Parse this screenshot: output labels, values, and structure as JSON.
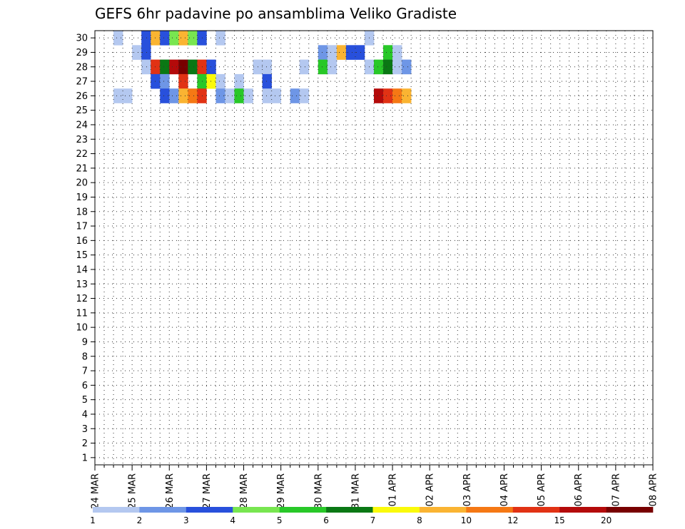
{
  "chart_data": {
    "type": "heatmap",
    "title": "GEFS 6hr padavine po ansamblima Veliko Gradiste",
    "xlabel": "",
    "ylabel": "",
    "x_tick_labels": [
      "24 MAR",
      "25 MAR",
      "26 MAR",
      "27 MAR",
      "28 MAR",
      "29 MAR",
      "30 MAR",
      "31 MAR",
      "01 APR",
      "02 APR",
      "03 APR",
      "04 APR",
      "05 APR",
      "06 APR",
      "07 APR",
      "08 APR"
    ],
    "y_tick_labels": [
      "1",
      "2",
      "3",
      "4",
      "5",
      "6",
      "7",
      "8",
      "9",
      "10",
      "11",
      "12",
      "13",
      "14",
      "15",
      "16",
      "17",
      "18",
      "19",
      "20",
      "21",
      "22",
      "23",
      "24",
      "25",
      "26",
      "27",
      "28",
      "29",
      "30"
    ],
    "x_range": [
      "24 MAR 00Z",
      "08 APR 00Z"
    ],
    "time_step_hours": 6,
    "y_range": [
      1,
      30
    ],
    "grid": "dotted",
    "colorbar": {
      "position": "bottom",
      "thresholds": [
        "1",
        "2",
        "3",
        "4",
        "5",
        "6",
        "7",
        "8",
        "10",
        "12",
        "15",
        "20"
      ],
      "colors": [
        "#b4c8f0",
        "#6e96e6",
        "#2850dc",
        "#78e650",
        "#28c828",
        "#0a7814",
        "#fafa0a",
        "#fab432",
        "#f57814",
        "#e13214",
        "#b40a0a",
        "#780000"
      ]
    },
    "legend_note": "cells list [member, 6h-step index from 24 MAR 00Z, class 0-11 where class k is >= threshold k]",
    "cells": [
      [
        30,
        2,
        0
      ],
      [
        30,
        5,
        2
      ],
      [
        30,
        6,
        7
      ],
      [
        30,
        7,
        2
      ],
      [
        30,
        8,
        3
      ],
      [
        30,
        9,
        7
      ],
      [
        30,
        10,
        3
      ],
      [
        30,
        11,
        2
      ],
      [
        30,
        13,
        0
      ],
      [
        30,
        29,
        0
      ],
      [
        29,
        4,
        0
      ],
      [
        29,
        5,
        2
      ],
      [
        29,
        24,
        1
      ],
      [
        29,
        25,
        0
      ],
      [
        29,
        26,
        7
      ],
      [
        29,
        27,
        2
      ],
      [
        29,
        28,
        2
      ],
      [
        29,
        31,
        4
      ],
      [
        29,
        32,
        0
      ],
      [
        28,
        5,
        0
      ],
      [
        28,
        6,
        9
      ],
      [
        28,
        7,
        5
      ],
      [
        28,
        8,
        10
      ],
      [
        28,
        9,
        11
      ],
      [
        28,
        10,
        5
      ],
      [
        28,
        11,
        9
      ],
      [
        28,
        12,
        2
      ],
      [
        28,
        17,
        0
      ],
      [
        28,
        18,
        0
      ],
      [
        28,
        22,
        0
      ],
      [
        28,
        24,
        4
      ],
      [
        28,
        25,
        0
      ],
      [
        28,
        29,
        0
      ],
      [
        28,
        30,
        4
      ],
      [
        28,
        31,
        5
      ],
      [
        28,
        32,
        0
      ],
      [
        28,
        33,
        1
      ],
      [
        27,
        6,
        2
      ],
      [
        27,
        7,
        1
      ],
      [
        27,
        9,
        9
      ],
      [
        27,
        11,
        4
      ],
      [
        27,
        12,
        6
      ],
      [
        27,
        13,
        0
      ],
      [
        27,
        15,
        0
      ],
      [
        27,
        18,
        2
      ],
      [
        26,
        2,
        0
      ],
      [
        26,
        3,
        0
      ],
      [
        26,
        7,
        2
      ],
      [
        26,
        8,
        1
      ],
      [
        26,
        9,
        7
      ],
      [
        26,
        10,
        8
      ],
      [
        26,
        11,
        9
      ],
      [
        26,
        13,
        1
      ],
      [
        26,
        14,
        0
      ],
      [
        26,
        15,
        4
      ],
      [
        26,
        16,
        0
      ],
      [
        26,
        18,
        0
      ],
      [
        26,
        19,
        0
      ],
      [
        26,
        21,
        1
      ],
      [
        26,
        22,
        0
      ],
      [
        26,
        30,
        10
      ],
      [
        26,
        31,
        9
      ],
      [
        26,
        32,
        8
      ],
      [
        26,
        33,
        7
      ]
    ]
  }
}
